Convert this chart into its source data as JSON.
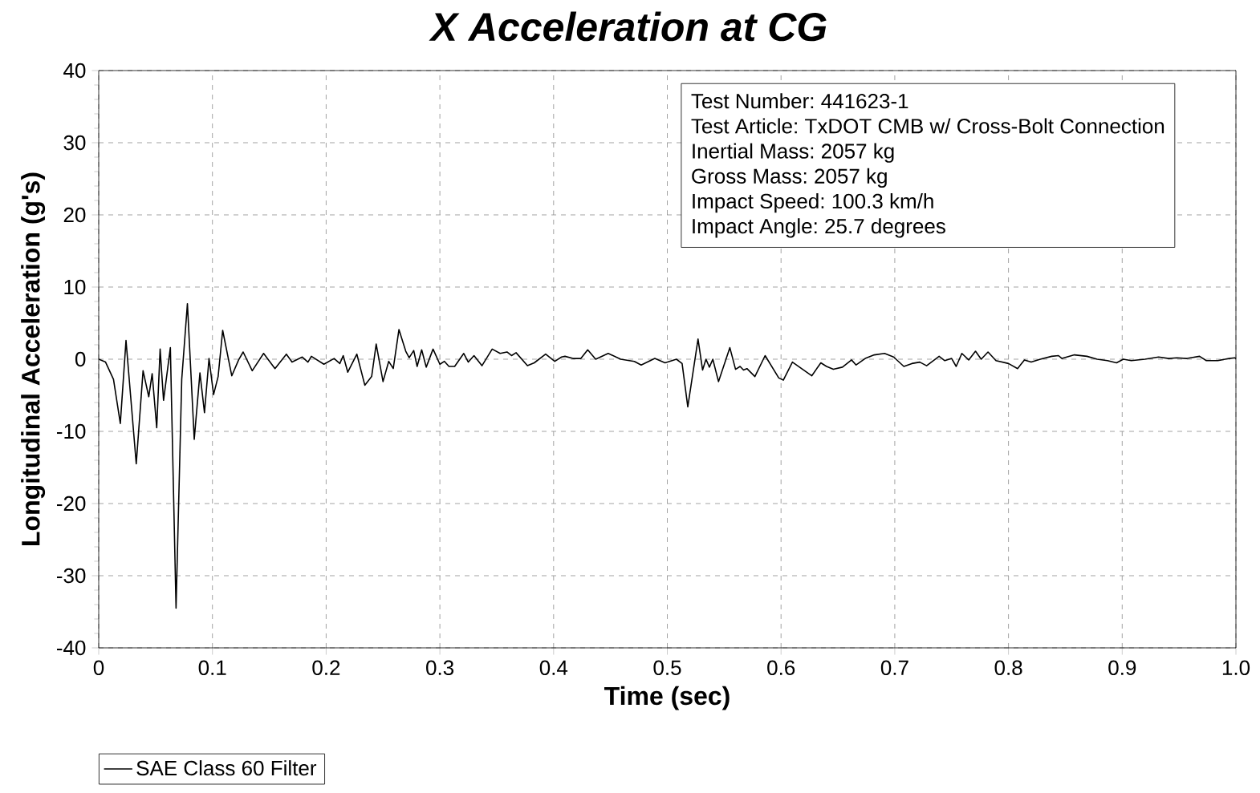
{
  "chart_data": {
    "type": "line",
    "title": "X Acceleration at CG",
    "xlabel": "Time (sec)",
    "ylabel": "Longitudinal Acceleration (g's)",
    "annotations": [
      "Test Number: 441623-1",
      "Test Article: TxDOT CMB w/ Cross-Bolt Connection",
      "Inertial Mass: 2057 kg",
      "Gross Mass: 2057 kg",
      "Impact Speed: 100.3 km/h",
      "Impact Angle: 25.7 degrees"
    ],
    "xlim": [
      0,
      1.0
    ],
    "ylim": [
      -40,
      40
    ],
    "xticks": [
      0,
      0.1,
      0.2,
      0.3,
      0.4,
      0.5,
      0.6,
      0.7,
      0.8,
      0.9,
      {
        "value": 1.0,
        "label": "1.0"
      }
    ],
    "yticks": [
      -40,
      -30,
      -20,
      -10,
      0,
      10,
      20,
      30,
      40
    ],
    "grid": true,
    "legend": "bottom",
    "marker": "none",
    "line_style": "solid",
    "series": [
      {
        "name": "SAE Class 60 Filter",
        "color": "#000000",
        "x": [
          0,
          0.006,
          0.013,
          0.019,
          0.024,
          0.028,
          0.033,
          0.039,
          0.044,
          0.047,
          0.051,
          0.054,
          0.057,
          0.063,
          0.068,
          0.073,
          0.078,
          0.084,
          0.089,
          0.093,
          0.097,
          0.101,
          0.105,
          0.109,
          0.117,
          0.123,
          0.127,
          0.135,
          0.145,
          0.155,
          0.165,
          0.17,
          0.179,
          0.184,
          0.187,
          0.198,
          0.207,
          0.212,
          0.215,
          0.219,
          0.227,
          0.234,
          0.24,
          0.244,
          0.25,
          0.255,
          0.259,
          0.264,
          0.27,
          0.273,
          0.277,
          0.28,
          0.284,
          0.288,
          0.294,
          0.3,
          0.304,
          0.308,
          0.313,
          0.321,
          0.325,
          0.33,
          0.337,
          0.346,
          0.353,
          0.359,
          0.363,
          0.367,
          0.377,
          0.383,
          0.393,
          0.401,
          0.407,
          0.41,
          0.417,
          0.424,
          0.43,
          0.437,
          0.448,
          0.459,
          0.471,
          0.477,
          0.489,
          0.498,
          0.508,
          0.513,
          0.518,
          0.527,
          0.531,
          0.534,
          0.537,
          0.54,
          0.545,
          0.555,
          0.56,
          0.564,
          0.567,
          0.57,
          0.577,
          0.586,
          0.598,
          0.602,
          0.61,
          0.627,
          0.635,
          0.64,
          0.646,
          0.654,
          0.662,
          0.666,
          0.674,
          0.682,
          0.691,
          0.699,
          0.708,
          0.715,
          0.722,
          0.728,
          0.739,
          0.744,
          0.75,
          0.754,
          0.759,
          0.765,
          0.771,
          0.776,
          0.782,
          0.789,
          0.8,
          0.808,
          0.814,
          0.82,
          0.828,
          0.838,
          0.844,
          0.847,
          0.858,
          0.869,
          0.878,
          0.887,
          0.895,
          0.901,
          0.908,
          0.92,
          0.932,
          0.941,
          0.948,
          0.957,
          0.96,
          0.968,
          0.974,
          0.984,
          0.994,
          0.999,
          1.0
        ],
        "values": [
          0,
          -0.4,
          -2.8,
          -8.9,
          2.6,
          -5.0,
          -14.5,
          -1.6,
          -5.2,
          -2.0,
          -9.5,
          1.4,
          -5.7,
          1.6,
          -34.5,
          -2.8,
          7.7,
          -11.1,
          -1.9,
          -7.4,
          0.1,
          -4.9,
          -2.4,
          4.0,
          -2.3,
          -0.1,
          1.0,
          -1.6,
          0.8,
          -1.3,
          0.7,
          -0.4,
          0.3,
          -0.4,
          0.4,
          -0.7,
          0.1,
          -0.6,
          0.5,
          -1.8,
          0.7,
          -3.6,
          -2.4,
          2.1,
          -3.1,
          -0.3,
          -1.3,
          4.1,
          1.1,
          0.2,
          1.2,
          -1.0,
          1.3,
          -1.1,
          1.4,
          -0.7,
          -0.3,
          -1.0,
          -1.0,
          0.8,
          -0.4,
          0.5,
          -0.9,
          1.4,
          0.8,
          1.0,
          0.5,
          0.9,
          -0.9,
          -0.5,
          0.7,
          -0.3,
          0.3,
          0.4,
          0.1,
          0.1,
          1.3,
          0.0,
          0.8,
          0.0,
          -0.3,
          -0.8,
          0.1,
          -0.5,
          0.0,
          -0.6,
          -6.6,
          2.8,
          -1.5,
          0.0,
          -1.1,
          0.0,
          -3.1,
          1.6,
          -1.4,
          -1.0,
          -1.5,
          -1.3,
          -2.4,
          0.5,
          -2.6,
          -2.9,
          -0.4,
          -2.3,
          -0.5,
          -1.0,
          -1.4,
          -1.1,
          -0.1,
          -0.8,
          0.1,
          0.6,
          0.8,
          0.3,
          -1.0,
          -0.6,
          -0.4,
          -0.9,
          0.4,
          -0.2,
          0.1,
          -1.0,
          0.8,
          -0.1,
          1.1,
          0.0,
          1.0,
          -0.2,
          -0.6,
          -1.3,
          -0.1,
          -0.4,
          0.0,
          0.4,
          0.5,
          0.1,
          0.6,
          0.4,
          0.0,
          -0.2,
          -0.5,
          0.0,
          -0.2,
          0.0,
          0.3,
          0.1,
          0.2,
          0.1,
          0.2,
          0.4,
          -0.2,
          -0.2,
          0.1,
          0.2,
          0.1
        ]
      }
    ]
  }
}
